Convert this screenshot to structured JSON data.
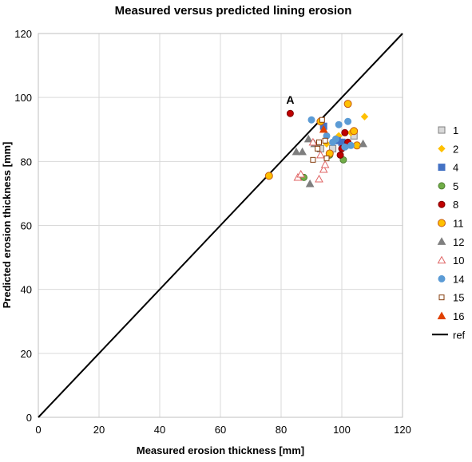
{
  "chart_data": {
    "type": "scatter",
    "title": "Measured versus predicted lining erosion",
    "xlabel": "Measured erosion thickness [mm]",
    "ylabel": "Predicted erosion thickness [mm]",
    "xlim": [
      0,
      120
    ],
    "ylim": [
      0,
      120
    ],
    "xticks": [
      "0",
      "20",
      "40",
      "60",
      "80",
      "100",
      "120"
    ],
    "yticks": [
      "0",
      "20",
      "40",
      "60",
      "80",
      "100",
      "120"
    ],
    "grid": true,
    "legend_position": "right",
    "annotations": [
      {
        "text": "A",
        "x": 83,
        "y": 98
      }
    ],
    "series": [
      {
        "name": "1",
        "marker": "square",
        "color": "#d9d9d9",
        "stroke": "#7f7f7f",
        "points": [
          [
            93,
            84
          ],
          [
            97,
            84
          ],
          [
            104,
            88
          ],
          [
            101,
            85
          ]
        ]
      },
      {
        "name": "2",
        "marker": "diamond",
        "color": "#ffc000",
        "stroke": "#ffc000",
        "points": [
          [
            107.5,
            94
          ],
          [
            100,
            86
          ],
          [
            95,
            85.5
          ],
          [
            103,
            89
          ],
          [
            99,
            88
          ]
        ]
      },
      {
        "name": "4",
        "marker": "square",
        "color": "#4472c4",
        "stroke": "#4472c4",
        "points": [
          [
            94,
            91
          ],
          [
            98.5,
            86.5
          ],
          [
            100,
            86
          ]
        ]
      },
      {
        "name": "5",
        "marker": "circle",
        "color": "#70ad47",
        "stroke": "#507e32",
        "points": [
          [
            87.5,
            75
          ],
          [
            100.5,
            80.5
          ],
          [
            96,
            82
          ]
        ]
      },
      {
        "name": "8",
        "marker": "circle",
        "color": "#c00000",
        "stroke": "#7f0000",
        "points": [
          [
            83,
            95
          ],
          [
            101,
            89
          ],
          [
            100,
            84
          ],
          [
            102,
            86
          ],
          [
            99.5,
            82
          ]
        ]
      },
      {
        "name": "11",
        "marker": "circle",
        "color": "#ffc000",
        "stroke": "#c55a11",
        "points": [
          [
            76,
            75.5
          ],
          [
            93,
            92.5
          ],
          [
            102,
            98
          ],
          [
            104,
            89.5
          ],
          [
            105,
            85
          ],
          [
            96,
            82.5
          ]
        ]
      },
      {
        "name": "12",
        "marker": "triangle",
        "color": "#7f7f7f",
        "stroke": "#7f7f7f",
        "points": [
          [
            85,
            83
          ],
          [
            87,
            83
          ],
          [
            89,
            87
          ],
          [
            89.5,
            73
          ],
          [
            91,
            85.5
          ],
          [
            107,
            85.5
          ]
        ]
      },
      {
        "name": "10",
        "marker": "triangle-open",
        "color": "#ffffff",
        "stroke": "#e06666",
        "points": [
          [
            85.5,
            75
          ],
          [
            86.5,
            76
          ],
          [
            92.5,
            74.5
          ],
          [
            94,
            77.5
          ],
          [
            94.5,
            79
          ],
          [
            90.5,
            86
          ],
          [
            93,
            82
          ]
        ]
      },
      {
        "name": "14",
        "marker": "circle",
        "color": "#5b9bd5",
        "stroke": "#5b9bd5",
        "points": [
          [
            90,
            93
          ],
          [
            95,
            88
          ],
          [
            99,
            91.5
          ],
          [
            102,
            92.5
          ],
          [
            103,
            85
          ],
          [
            98,
            87
          ],
          [
            101,
            84.5
          ],
          [
            97,
            86
          ]
        ]
      },
      {
        "name": "15",
        "marker": "square-open",
        "color": "#ffffff",
        "stroke": "#843c0c",
        "points": [
          [
            93.5,
            93
          ],
          [
            90.5,
            80.5
          ],
          [
            92,
            84
          ],
          [
            92.5,
            86
          ],
          [
            94.5,
            86.5
          ],
          [
            95,
            81
          ]
        ]
      },
      {
        "name": "16",
        "marker": "triangle",
        "color": "#e04000",
        "stroke": "#e04000",
        "points": [
          [
            94,
            90
          ]
        ]
      }
    ],
    "reference": {
      "name": "ref",
      "points": [
        [
          0,
          0
        ],
        [
          120,
          120
        ]
      ],
      "color": "#000000"
    }
  }
}
